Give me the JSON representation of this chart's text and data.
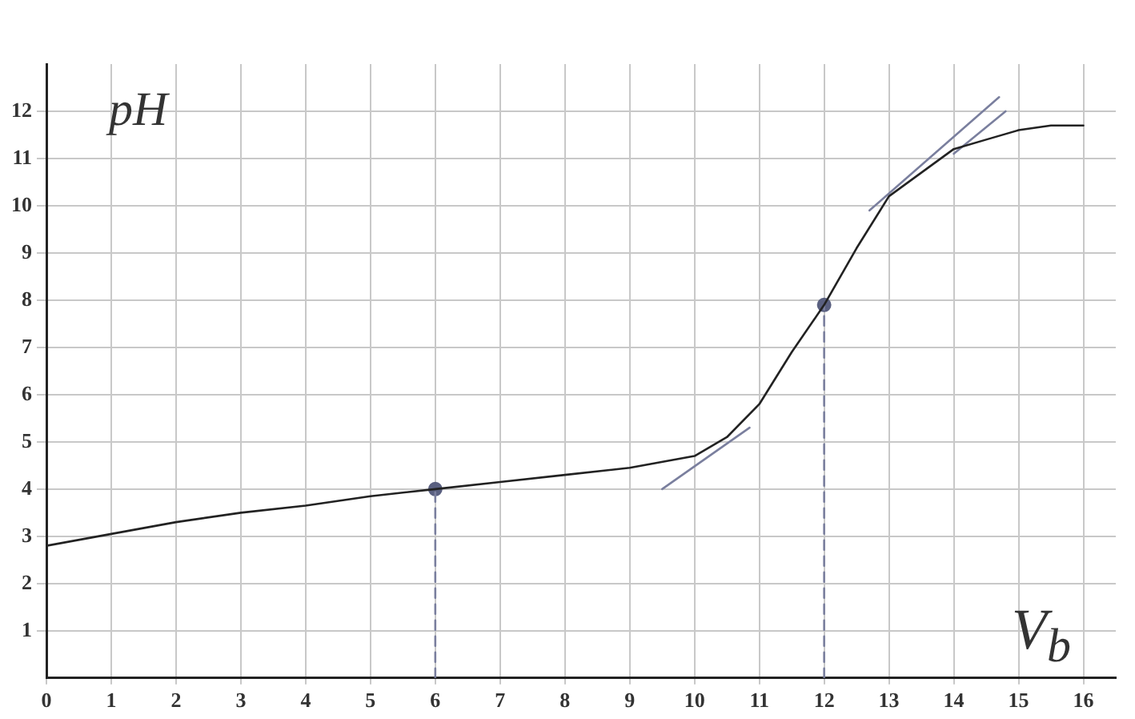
{
  "chart_data": {
    "type": "line",
    "xlabel": "V$_{b}$",
    "ylabel": "pH",
    "xlim": [
      0,
      16.5
    ],
    "ylim": [
      0,
      13
    ],
    "xticks": [
      0,
      1,
      2,
      3,
      4,
      5,
      6,
      7,
      8,
      9,
      10,
      11,
      12,
      13,
      14,
      15,
      16
    ],
    "yticks": [
      1,
      2,
      3,
      4,
      5,
      6,
      7,
      8,
      9,
      10,
      11,
      12
    ],
    "grid": true,
    "legend": false,
    "marker": "none",
    "series": [
      {
        "color": "#222222",
        "x": [
          0,
          1,
          2,
          3,
          4,
          5,
          6,
          7,
          8,
          9,
          10,
          10.5,
          11,
          11.5,
          12,
          12.5,
          13,
          13.5,
          14,
          14.5,
          15,
          15.5,
          16
        ],
        "values": [
          2.8,
          3.05,
          3.3,
          3.5,
          3.65,
          3.85,
          4.0,
          4.15,
          4.3,
          4.45,
          4.7,
          5.1,
          5.8,
          6.9,
          7.9,
          9.1,
          10.2,
          10.7,
          11.2,
          11.4,
          11.6,
          11.7,
          11.7
        ]
      },
      {
        "color": "#7a7f9e",
        "x": [
          9.5,
          10.85
        ],
        "values": [
          4.0,
          5.3
        ]
      },
      {
        "color": "#7a7f9e",
        "x": [
          12.7,
          14.7
        ],
        "values": [
          9.9,
          12.3
        ]
      },
      {
        "color": "#7a7f9e",
        "x": [
          14.0,
          14.8
        ],
        "values": [
          11.1,
          12.0
        ]
      },
      {
        "color": "#7a7f9e",
        "x": [
          6,
          6
        ],
        "values": [
          0,
          4.0
        ],
        "line_style": "dashed"
      },
      {
        "color": "#7a7f9e",
        "x": [
          12,
          12
        ],
        "values": [
          0,
          7.9
        ],
        "line_style": "dashed"
      },
      {
        "type": "scatter",
        "color": "#5a6080",
        "x": [
          6,
          12
        ],
        "values": [
          4.0,
          7.9
        ],
        "marker": "circle"
      }
    ]
  }
}
